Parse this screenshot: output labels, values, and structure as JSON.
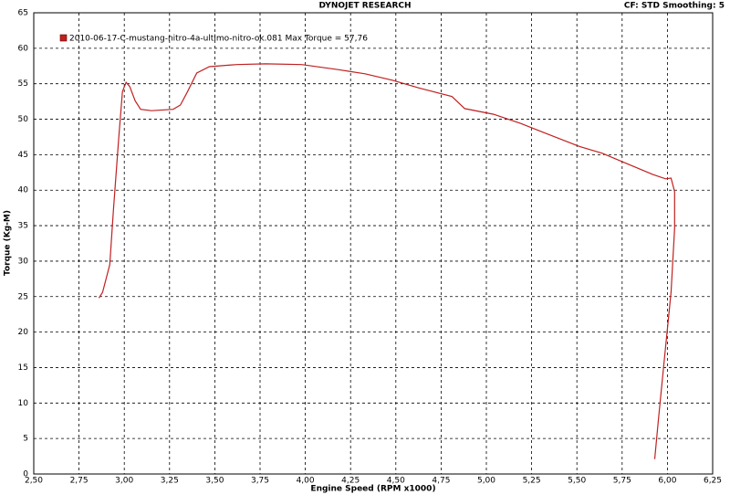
{
  "chart_data": {
    "type": "line",
    "title": "DYNOJET RESEARCH",
    "subtitle": "CF: STD  Smoothing: 5",
    "x_label": "Engine Speed (RPM x1000)",
    "y_label": "Torque (Kg-M)",
    "x": [
      2.86,
      2.88,
      2.92,
      2.94,
      2.97,
      2.99,
      3.01,
      3.03,
      3.06,
      3.09,
      3.15,
      3.27,
      3.31,
      3.35,
      3.4,
      3.47,
      3.62,
      3.78,
      3.98,
      4.18,
      4.33,
      4.48,
      4.63,
      4.81,
      4.88,
      5.04,
      5.19,
      5.34,
      5.51,
      5.64,
      5.79,
      5.92,
      5.99,
      6.02,
      6.04,
      6.04,
      6.02,
      5.98,
      5.95,
      5.93
    ],
    "series": [
      {
        "name": "2010-06-17-C-mustang-nitro-4a-ultimo-nitro-ok.081 Max Torque = 57,76",
        "color": "#c02020",
        "values": [
          24.8,
          25.6,
          29.5,
          37.2,
          47.5,
          53.9,
          55.2,
          54.6,
          52.6,
          51.4,
          51.2,
          51.4,
          52.0,
          53.9,
          56.5,
          57.4,
          57.7,
          57.8,
          57.7,
          57.0,
          56.4,
          55.5,
          54.4,
          53.2,
          51.5,
          50.7,
          49.4,
          47.9,
          46.2,
          45.2,
          43.6,
          42.2,
          41.6,
          41.7,
          39.8,
          34.6,
          25.6,
          15.3,
          7.6,
          2.1
        ]
      }
    ],
    "xlim": [
      2.5,
      6.25
    ],
    "xticks": [
      {
        "value": 2.5,
        "label": "2,50"
      },
      {
        "value": 2.75,
        "label": "2,75"
      },
      {
        "value": 3.0,
        "label": "3,00"
      },
      {
        "value": 3.25,
        "label": "3,25"
      },
      {
        "value": 3.5,
        "label": "3,50"
      },
      {
        "value": 3.75,
        "label": "3,75"
      },
      {
        "value": 4.0,
        "label": "4,00"
      },
      {
        "value": 4.25,
        "label": "4,25"
      },
      {
        "value": 4.5,
        "label": "4,50"
      },
      {
        "value": 4.75,
        "label": "4,75"
      },
      {
        "value": 5.0,
        "label": "5,00"
      },
      {
        "value": 5.25,
        "label": "5,25"
      },
      {
        "value": 5.5,
        "label": "5,50"
      },
      {
        "value": 5.75,
        "label": "5,75"
      },
      {
        "value": 6.0,
        "label": "6,00"
      },
      {
        "value": 6.25,
        "label": "6,25"
      }
    ],
    "ylim": [
      0,
      65
    ],
    "yticks": [
      0,
      5,
      10,
      15,
      20,
      25,
      30,
      35,
      40,
      45,
      50,
      55,
      60,
      65
    ],
    "grid": true,
    "legend": "top-left"
  }
}
